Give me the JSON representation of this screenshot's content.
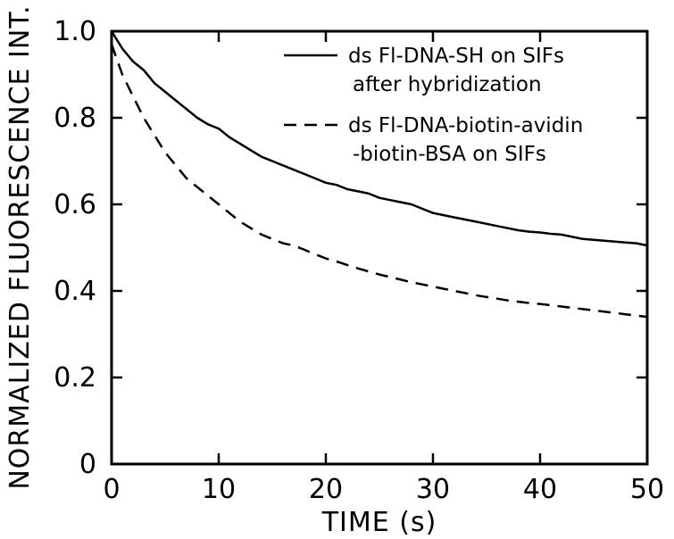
{
  "chart_data": {
    "type": "line",
    "title": "",
    "xlabel": "TIME (s)",
    "ylabel": "NORMALIZED FLUORESCENCE INT.",
    "xlim": [
      0,
      50
    ],
    "ylim": [
      0,
      1.0
    ],
    "x_ticks": [
      "0",
      "10",
      "20",
      "30",
      "40",
      "50"
    ],
    "y_ticks": [
      "0",
      "0.2",
      "0.4",
      "0.6",
      "0.8",
      "1.0"
    ],
    "grid": false,
    "legend_position": "top-right",
    "series": [
      {
        "name_lines": [
          "ds Fl-DNA-SH on SIFs",
          "after hybridization"
        ],
        "style": "solid",
        "x": [
          0,
          1,
          2,
          3,
          4,
          5,
          6,
          7,
          8,
          9,
          10,
          11,
          12,
          13,
          14,
          15,
          16,
          17,
          18,
          19,
          20,
          21,
          22,
          23,
          24,
          25,
          26,
          27,
          28,
          29,
          30,
          31,
          32,
          33,
          34,
          35,
          36,
          37,
          38,
          39,
          40,
          41,
          42,
          43,
          44,
          45,
          46,
          47,
          48,
          49,
          50
        ],
        "y": [
          1.0,
          0.96,
          0.93,
          0.91,
          0.88,
          0.86,
          0.84,
          0.82,
          0.8,
          0.785,
          0.775,
          0.755,
          0.74,
          0.725,
          0.71,
          0.7,
          0.69,
          0.68,
          0.67,
          0.66,
          0.65,
          0.645,
          0.635,
          0.63,
          0.625,
          0.615,
          0.61,
          0.605,
          0.6,
          0.59,
          0.58,
          0.575,
          0.57,
          0.565,
          0.56,
          0.555,
          0.55,
          0.545,
          0.54,
          0.537,
          0.535,
          0.532,
          0.53,
          0.525,
          0.52,
          0.518,
          0.516,
          0.514,
          0.512,
          0.51,
          0.505
        ]
      },
      {
        "name_lines": [
          "ds Fl-DNA-biotin-avidin",
          "-biotin-BSA on SIFs"
        ],
        "style": "dashed",
        "x": [
          0,
          1,
          2,
          3,
          4,
          5,
          6,
          7,
          8,
          9,
          10,
          11,
          12,
          13,
          14,
          15,
          16,
          17,
          18,
          19,
          20,
          21,
          22,
          23,
          24,
          25,
          26,
          27,
          28,
          29,
          30,
          31,
          32,
          33,
          34,
          35,
          36,
          37,
          38,
          39,
          40,
          41,
          42,
          43,
          44,
          45,
          46,
          47,
          48,
          49,
          50
        ],
        "y": [
          0.97,
          0.9,
          0.85,
          0.8,
          0.76,
          0.72,
          0.69,
          0.66,
          0.64,
          0.62,
          0.6,
          0.58,
          0.56,
          0.545,
          0.53,
          0.52,
          0.51,
          0.505,
          0.495,
          0.485,
          0.475,
          0.468,
          0.46,
          0.452,
          0.445,
          0.438,
          0.432,
          0.426,
          0.42,
          0.415,
          0.41,
          0.405,
          0.4,
          0.395,
          0.39,
          0.386,
          0.382,
          0.378,
          0.375,
          0.372,
          0.37,
          0.367,
          0.364,
          0.361,
          0.358,
          0.355,
          0.352,
          0.349,
          0.346,
          0.343,
          0.34
        ]
      }
    ]
  }
}
